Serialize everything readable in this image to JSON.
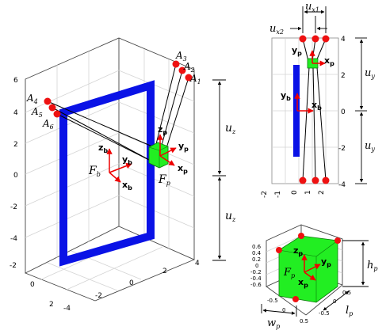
{
  "main_plot": {
    "z_ticks": [
      "6",
      "4",
      "2",
      "0",
      "-2",
      "-4"
    ],
    "x_ticks": [
      "-4",
      "-2",
      "0",
      "2",
      "4"
    ],
    "y_ticks": [
      "-2",
      "0",
      "2"
    ],
    "anchors_right": [
      "A",
      "A",
      "A"
    ],
    "anchors_right_sub": [
      "3",
      "2",
      "1"
    ],
    "anchors_left": [
      "A",
      "A",
      "A"
    ],
    "anchors_left_sub": [
      "4",
      "5",
      "6"
    ],
    "base_frame": "F",
    "base_frame_sub": "b",
    "platform_frame": "F",
    "platform_frame_sub": "p",
    "axis_z": "z",
    "axis_y": "y",
    "axis_x": "x",
    "sub_b": "b",
    "sub_p": "p",
    "dim_label": "u",
    "dim_sub": "z"
  },
  "top_view": {
    "x_ticks": [
      "-2",
      "-1",
      "0",
      "1",
      "2"
    ],
    "y_ticks": [
      "4",
      "2",
      "0",
      "-2",
      "-4"
    ],
    "ux1": "u",
    "ux1_sub": "x1",
    "ux2": "u",
    "ux2_sub": "x2",
    "uy": "u",
    "uy_sub": "y",
    "axis_y": "y",
    "axis_x": "x",
    "sub_b": "b",
    "sub_p": "p"
  },
  "cube_view": {
    "z_ticks": [
      "0.6",
      "0.4",
      "0.2",
      "0",
      "-0.2",
      "-0.4",
      "-0.6"
    ],
    "x_ticks": [
      "-0.5",
      "0",
      "0.5"
    ],
    "y_ticks": [
      "0.5",
      "0",
      "-0.5"
    ],
    "hp": "h",
    "hp_sub": "p",
    "wp": "w",
    "wp_sub": "p",
    "lp": "l",
    "lp_sub": "p",
    "frame": "F",
    "frame_sub": "p",
    "axis_z": "z",
    "axis_y": "y",
    "axis_x": "x",
    "sub_p": "p"
  },
  "colors": {
    "frame_blue": "#0a12e6",
    "platform_green": "#22ee22",
    "anchor_red": "#ee1111",
    "axis_red": "#ee0000"
  }
}
